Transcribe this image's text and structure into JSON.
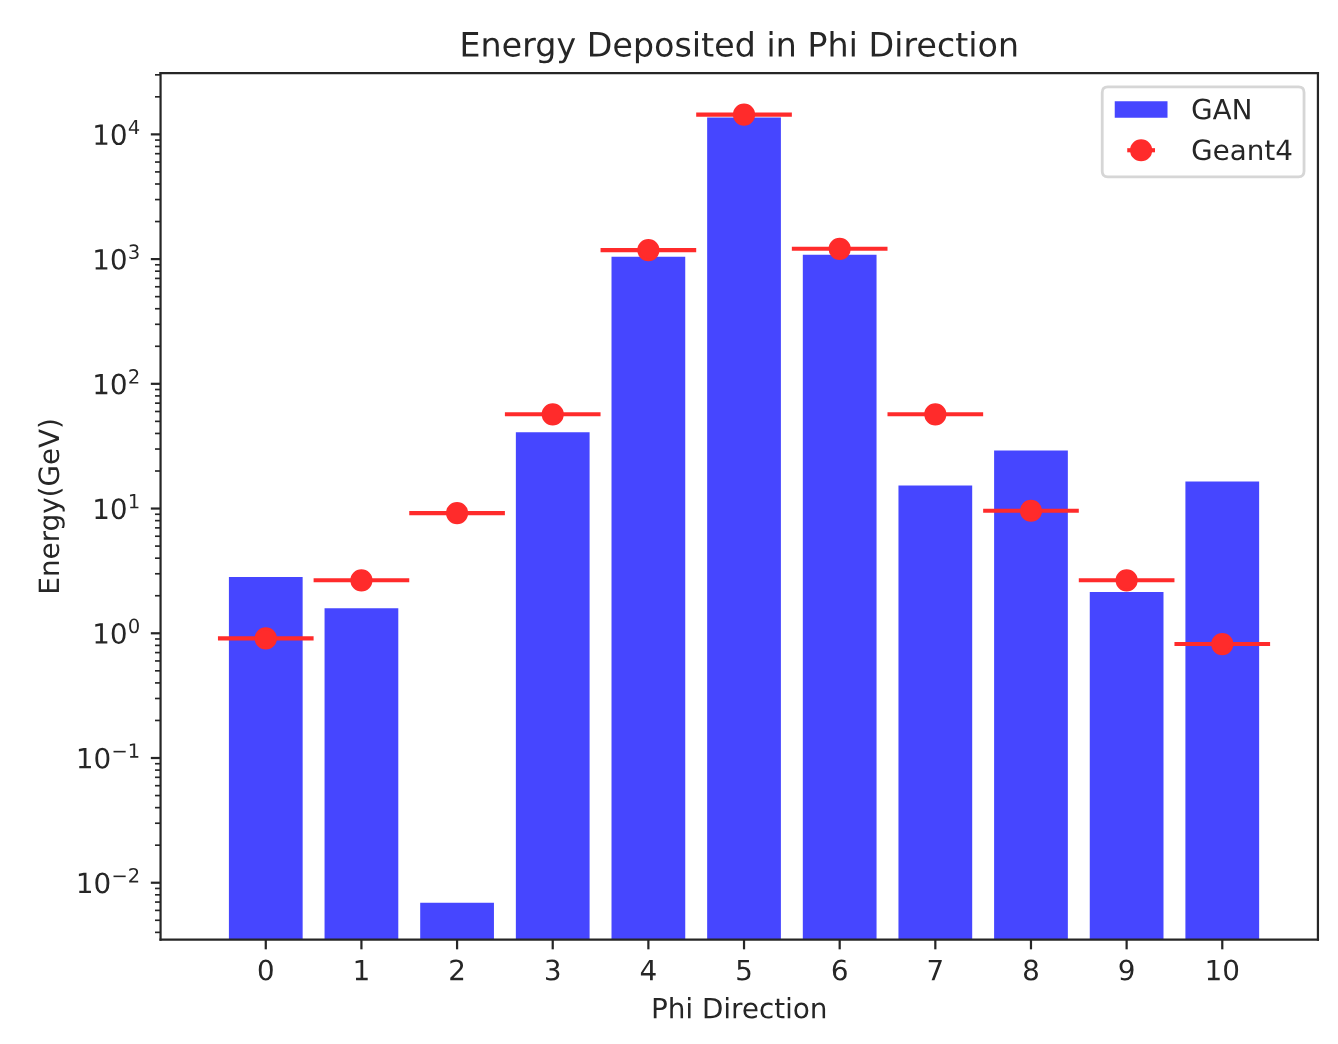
{
  "chart_data": {
    "type": "bar",
    "title": "Energy Deposited in Phi Direction",
    "xlabel": "Phi Direction",
    "ylabel": "Energy(GeV)",
    "x": [
      0,
      1,
      2,
      3,
      4,
      5,
      6,
      7,
      8,
      9,
      10
    ],
    "xlim": [
      -1.1,
      11
    ],
    "xticks": [
      0,
      1,
      2,
      3,
      4,
      5,
      6,
      7,
      8,
      9,
      10
    ],
    "series": [
      {
        "name": "GAN",
        "color": "#4646ff",
        "values": [
          2.9,
          1.63,
          0.0071,
          42,
          1070,
          14000,
          1110,
          15.7,
          30,
          2.2,
          16.9
        ]
      },
      {
        "name": "Geant4",
        "type": "scatter",
        "color": "#ff2b2b",
        "marker": "circle",
        "values": [
          0.91,
          2.66,
          9.2,
          57,
          1180,
          14400,
          1210,
          57,
          9.6,
          2.66,
          0.82
        ],
        "xerrors": [
          0.5,
          0.5,
          0.5,
          0.5,
          0.5,
          0.5,
          0.5,
          0.5,
          0.5,
          0.5,
          0.5
        ]
      }
    ],
    "log": true,
    "ylim": [
      0.0035,
      31000
    ],
    "yticks": [
      {
        "value": 0.01,
        "label": "10$^{−2}$"
      },
      {
        "value": 0.1,
        "label": "10$^{−1}$"
      },
      {
        "value": 1,
        "label": "10$^{0}$"
      },
      {
        "value": 10,
        "label": "10$^{1}$"
      },
      {
        "value": 100,
        "label": "10$^{2}$"
      },
      {
        "value": 1000,
        "label": "10$^{3}$"
      },
      {
        "value": 10000,
        "label": "10$^{4}$"
      }
    ],
    "grid": false,
    "legend": "top right"
  }
}
